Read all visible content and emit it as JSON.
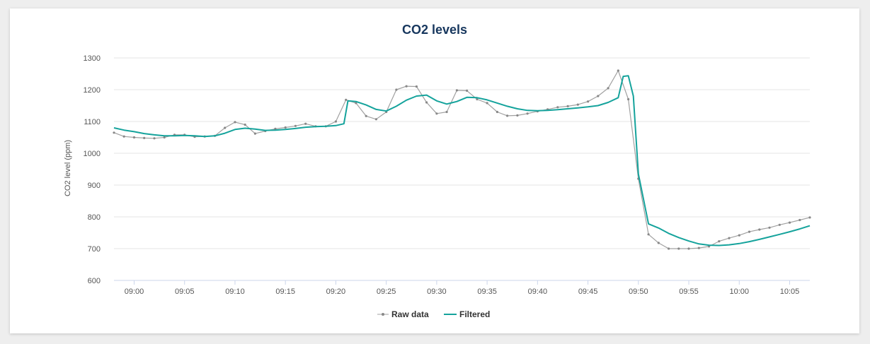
{
  "chart_data": {
    "type": "line",
    "title": "CO2 levels",
    "xlabel": "",
    "ylabel": "CO2 level (ppm)",
    "ylim": [
      600,
      1300
    ],
    "yticks": [
      600,
      700,
      800,
      900,
      1000,
      1100,
      1200,
      1300
    ],
    "xrange": [
      "08:58",
      "10:07"
    ],
    "xticks": [
      "09:00",
      "09:05",
      "09:10",
      "09:15",
      "09:20",
      "09:25",
      "09:30",
      "09:35",
      "09:40",
      "09:45",
      "09:50",
      "09:55",
      "10:00",
      "10:05"
    ],
    "grid": true,
    "legend": "bottom-center",
    "series": [
      {
        "name": "Raw data",
        "color": "#a0a0a0",
        "marker": "circle",
        "x": [
          "08:58",
          "08:59",
          "09:00",
          "09:01",
          "09:02",
          "09:03",
          "09:04",
          "09:05",
          "09:06",
          "09:07",
          "09:08",
          "09:09",
          "09:10",
          "09:11",
          "09:12",
          "09:13",
          "09:14",
          "09:15",
          "09:16",
          "09:17",
          "09:18",
          "09:19",
          "09:20",
          "09:21",
          "09:22",
          "09:23",
          "09:24",
          "09:25",
          "09:26",
          "09:27",
          "09:28",
          "09:29",
          "09:30",
          "09:31",
          "09:32",
          "09:33",
          "09:34",
          "09:35",
          "09:36",
          "09:37",
          "09:38",
          "09:39",
          "09:40",
          "09:41",
          "09:42",
          "09:43",
          "09:44",
          "09:45",
          "09:46",
          "09:47",
          "09:48",
          "09:49",
          "09:50",
          "09:51",
          "09:52",
          "09:53",
          "09:54",
          "09:55",
          "09:56",
          "09:57",
          "09:58",
          "09:59",
          "10:00",
          "10:01",
          "10:02",
          "10:03",
          "10:04",
          "10:05",
          "10:06",
          "10:07"
        ],
        "values": [
          1065,
          1053,
          1050,
          1048,
          1047,
          1050,
          1058,
          1058,
          1052,
          1053,
          1055,
          1080,
          1098,
          1090,
          1062,
          1070,
          1077,
          1081,
          1086,
          1093,
          1085,
          1085,
          1100,
          1168,
          1158,
          1117,
          1107,
          1130,
          1200,
          1211,
          1210,
          1160,
          1125,
          1130,
          1198,
          1197,
          1170,
          1158,
          1130,
          1118,
          1119,
          1125,
          1132,
          1138,
          1145,
          1148,
          1153,
          1163,
          1180,
          1205,
          1260,
          1170,
          920,
          745,
          718,
          700,
          700,
          700,
          702,
          707,
          723,
          733,
          742,
          753,
          760,
          766,
          775,
          782,
          790,
          798
        ]
      },
      {
        "name": "Filtered",
        "color": "#15a39c",
        "marker": "none",
        "x": [
          "08:58",
          "08:59",
          "09:00",
          "09:01",
          "09:02",
          "09:03",
          "09:04",
          "09:05",
          "09:06",
          "09:07",
          "09:08",
          "09:09",
          "09:10",
          "09:11",
          "09:12",
          "09:13",
          "09:14",
          "09:15",
          "09:16",
          "09:17",
          "09:18",
          "09:19",
          "09:20",
          "09:20.8",
          "09:21.2",
          "09:22",
          "09:23",
          "09:24",
          "09:25",
          "09:26",
          "09:27",
          "09:28",
          "09:29",
          "09:30",
          "09:31",
          "09:32",
          "09:33",
          "09:34",
          "09:35",
          "09:36",
          "09:37",
          "09:38",
          "09:39",
          "09:40",
          "09:41",
          "09:42",
          "09:43",
          "09:44",
          "09:45",
          "09:46",
          "09:47",
          "09:48",
          "09:48.5",
          "09:49",
          "09:49.5",
          "09:50",
          "09:51",
          "09:52",
          "09:53",
          "09:54",
          "09:55",
          "09:56",
          "09:57",
          "09:58",
          "09:59",
          "10:00",
          "10:01",
          "10:02",
          "10:03",
          "10:04",
          "10:05",
          "10:06",
          "10:07"
        ],
        "values": [
          1080,
          1073,
          1068,
          1062,
          1058,
          1055,
          1055,
          1056,
          1055,
          1053,
          1055,
          1063,
          1075,
          1079,
          1076,
          1072,
          1073,
          1075,
          1078,
          1082,
          1084,
          1085,
          1087,
          1093,
          1165,
          1163,
          1152,
          1138,
          1133,
          1148,
          1167,
          1180,
          1183,
          1165,
          1155,
          1163,
          1176,
          1175,
          1168,
          1158,
          1148,
          1140,
          1135,
          1134,
          1135,
          1137,
          1140,
          1143,
          1146,
          1150,
          1160,
          1175,
          1242,
          1244,
          1180,
          935,
          778,
          765,
          748,
          735,
          724,
          715,
          711,
          710,
          712,
          716,
          722,
          729,
          737,
          745,
          753,
          762,
          772
        ]
      }
    ]
  }
}
